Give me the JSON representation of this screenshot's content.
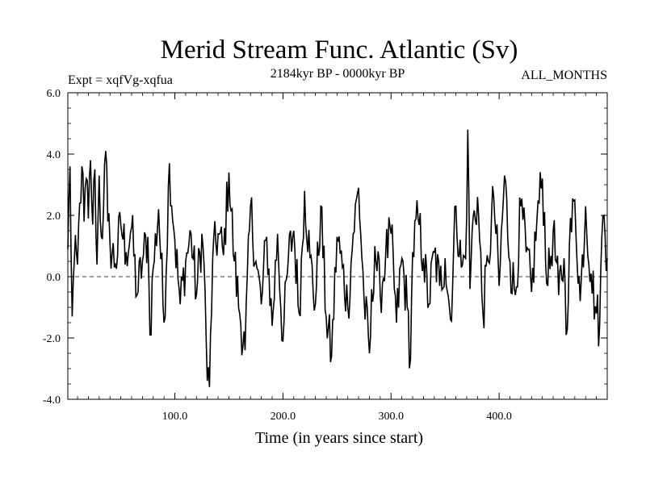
{
  "chart_data": {
    "type": "line",
    "title": "Merid Stream Func. Atlantic (Sv)",
    "subtitle_left": "Expt = xqfVg-xqfua",
    "subtitle_center": "2184kyr BP - 0000kyr BP",
    "subtitle_right": "ALL_MONTHS",
    "xlabel": "Time (in years since start)",
    "ylabel": "",
    "xlim": [
      1,
      500
    ],
    "ylim": [
      -4.0,
      6.0
    ],
    "xticks": [
      100,
      200,
      300,
      400
    ],
    "xtick_labels": [
      "100.0",
      "200.0",
      "300.0",
      "400.0"
    ],
    "yticks": [
      -4,
      -2,
      0,
      2,
      4,
      6
    ],
    "ytick_labels": [
      "-4.0",
      "-2.0",
      "0.0",
      "2.0",
      "4.0",
      "6.0"
    ],
    "zero_line": 0.0,
    "series": [
      {
        "name": "Merid Stream Func. Atlantic",
        "color": "#000000",
        "keypoints": [
          [
            1,
            0.9
          ],
          [
            3,
            3.6
          ],
          [
            5,
            -1.3
          ],
          [
            7,
            0.5
          ],
          [
            10,
            0.4
          ],
          [
            12,
            2.4
          ],
          [
            14,
            3.6
          ],
          [
            16,
            1.8
          ],
          [
            18,
            3.2
          ],
          [
            20,
            1.9
          ],
          [
            22,
            3.8
          ],
          [
            24,
            1.7
          ],
          [
            26,
            3.5
          ],
          [
            28,
            0.4
          ],
          [
            30,
            3.3
          ],
          [
            32,
            1.3
          ],
          [
            34,
            2.2
          ],
          [
            36,
            4.1
          ],
          [
            38,
            1.8
          ],
          [
            40,
            1.1
          ],
          [
            45,
            0.4
          ],
          [
            50,
            1.7
          ],
          [
            55,
            0.8
          ],
          [
            60,
            1.6
          ],
          [
            65,
            -0.6
          ],
          [
            70,
            0.5
          ],
          [
            75,
            1.3
          ],
          [
            77,
            -1.9
          ],
          [
            80,
            0.3
          ],
          [
            85,
            2.2
          ],
          [
            90,
            -1.5
          ],
          [
            95,
            3.7
          ],
          [
            100,
            1.2
          ],
          [
            105,
            -0.9
          ],
          [
            110,
            0.5
          ],
          [
            115,
            1.4
          ],
          [
            120,
            -0.6
          ],
          [
            125,
            1.4
          ],
          [
            128,
            -0.5
          ],
          [
            130,
            -3.4
          ],
          [
            132,
            -3.6
          ],
          [
            135,
            0.6
          ],
          [
            140,
            1.4
          ],
          [
            145,
            0.7
          ],
          [
            150,
            3.4
          ],
          [
            155,
            0.5
          ],
          [
            160,
            -1.2
          ],
          [
            165,
            -2.4
          ],
          [
            170,
            2.3
          ],
          [
            175,
            0.5
          ],
          [
            180,
            -0.9
          ],
          [
            185,
            1.3
          ],
          [
            190,
            -1.6
          ],
          [
            195,
            1.4
          ],
          [
            200,
            -2.1
          ],
          [
            205,
            0.6
          ],
          [
            210,
            1.5
          ],
          [
            215,
            -1.2
          ],
          [
            220,
            2.8
          ],
          [
            225,
            0.6
          ],
          [
            230,
            -0.9
          ],
          [
            235,
            2.3
          ],
          [
            240,
            -1.3
          ],
          [
            245,
            -2.6
          ],
          [
            250,
            1.3
          ],
          [
            255,
            0.3
          ],
          [
            260,
            -1.0
          ],
          [
            265,
            1.4
          ],
          [
            270,
            2.9
          ],
          [
            275,
            -0.7
          ],
          [
            280,
            -2.5
          ],
          [
            285,
            1.0
          ],
          [
            290,
            -0.6
          ],
          [
            295,
            0.7
          ],
          [
            300,
            1.4
          ],
          [
            305,
            -1.5
          ],
          [
            310,
            0.6
          ],
          [
            315,
            -1.0
          ],
          [
            318,
            -2.7
          ],
          [
            320,
            0.8
          ],
          [
            325,
            1.9
          ],
          [
            330,
            0.6
          ],
          [
            335,
            -0.9
          ],
          [
            340,
            0.8
          ],
          [
            345,
            -0.3
          ],
          [
            350,
            0.6
          ],
          [
            355,
            -1.4
          ],
          [
            360,
            2.3
          ],
          [
            365,
            0.3
          ],
          [
            369,
            0.6
          ],
          [
            371,
            4.8
          ],
          [
            373,
            -0.4
          ],
          [
            375,
            1.5
          ],
          [
            380,
            2.6
          ],
          [
            385,
            -1.2
          ],
          [
            390,
            0.5
          ],
          [
            395,
            2.6
          ],
          [
            400,
            -0.3
          ],
          [
            405,
            3.3
          ],
          [
            410,
            0.5
          ],
          [
            415,
            -0.6
          ],
          [
            420,
            2.3
          ],
          [
            425,
            0.8
          ],
          [
            430,
            -0.5
          ],
          [
            435,
            1.9
          ],
          [
            440,
            3.2
          ],
          [
            445,
            -0.3
          ],
          [
            450,
            1.5
          ],
          [
            455,
            -0.6
          ],
          [
            460,
            0.6
          ],
          [
            462,
            -1.9
          ],
          [
            465,
            1.0
          ],
          [
            470,
            2.5
          ],
          [
            475,
            -0.8
          ],
          [
            480,
            2.3
          ],
          [
            485,
            0.1
          ],
          [
            490,
            -1.2
          ],
          [
            493,
            -1.6
          ],
          [
            495,
            1.3
          ],
          [
            497,
            2.0
          ],
          [
            500,
            0.6
          ]
        ]
      }
    ]
  }
}
